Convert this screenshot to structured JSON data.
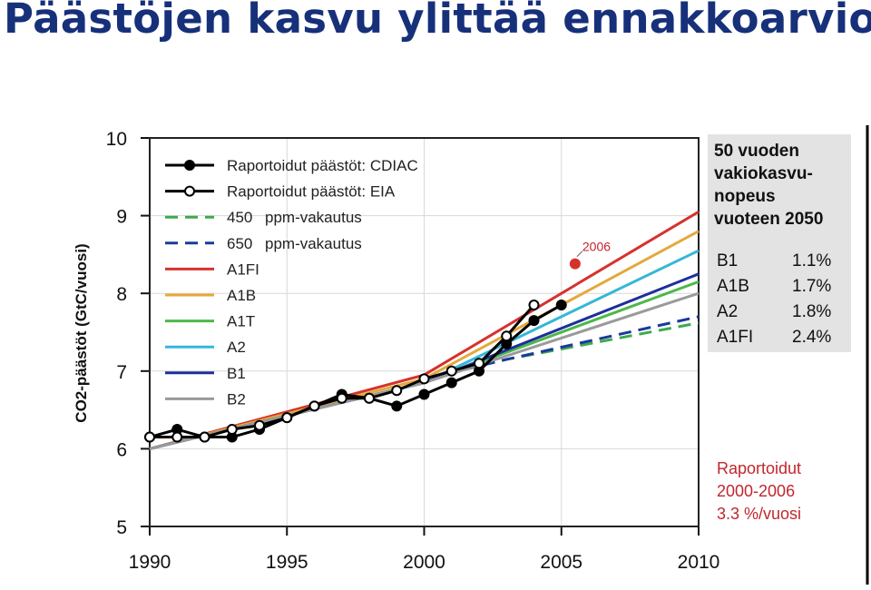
{
  "slide": {
    "title": "Päästöjen kasvu ylittää ennakkoarviot"
  },
  "chart_data": {
    "type": "line",
    "ylabel": "CO2-päästöt (GtC/vuosi)",
    "xlim": [
      1990,
      2010
    ],
    "ylim": [
      5,
      10
    ],
    "x_ticks": [
      1990,
      1995,
      2000,
      2005,
      2010
    ],
    "y_ticks": [
      5,
      6,
      7,
      8,
      9,
      10
    ],
    "legend_position": "top-left",
    "observed": [
      {
        "name": "Raportoidut päästöt: CDIAC",
        "color": "#000000",
        "marker": "filled",
        "points": [
          [
            1990,
            6.15
          ],
          [
            1991,
            6.25
          ],
          [
            1992,
            6.15
          ],
          [
            1993,
            6.15
          ],
          [
            1994,
            6.25
          ],
          [
            1995,
            6.4
          ],
          [
            1996,
            6.55
          ],
          [
            1997,
            6.7
          ],
          [
            1998,
            6.65
          ],
          [
            1999,
            6.55
          ],
          [
            2000,
            6.7
          ],
          [
            2001,
            6.85
          ],
          [
            2002,
            7.0
          ],
          [
            2003,
            7.35
          ],
          [
            2004,
            7.65
          ],
          [
            2005,
            7.85
          ]
        ]
      },
      {
        "name": "Raportoidut päästöt: EIA",
        "color": "#000000",
        "marker": "open",
        "points": [
          [
            1990,
            6.15
          ],
          [
            1991,
            6.15
          ],
          [
            1992,
            6.15
          ],
          [
            1993,
            6.25
          ],
          [
            1994,
            6.3
          ],
          [
            1995,
            6.4
          ],
          [
            1996,
            6.55
          ],
          [
            1997,
            6.65
          ],
          [
            1998,
            6.65
          ],
          [
            1999,
            6.75
          ],
          [
            2000,
            6.9
          ],
          [
            2001,
            7.0
          ],
          [
            2002,
            7.1
          ],
          [
            2003,
            7.45
          ],
          [
            2004,
            7.85
          ]
        ]
      }
    ],
    "scenarios": [
      {
        "name": "450",
        "name_suffix": "ppm-vakautus",
        "color": "#3daa4a",
        "dash": true,
        "points": [
          [
            2000,
            6.9
          ],
          [
            2003,
            7.15
          ],
          [
            2010,
            7.62
          ]
        ]
      },
      {
        "name": "650",
        "name_suffix": "ppm-vakautus",
        "color": "#1b3a9c",
        "dash": true,
        "points": [
          [
            2000,
            6.9
          ],
          [
            2003,
            7.15
          ],
          [
            2010,
            7.7
          ]
        ]
      },
      {
        "name": "A1FI",
        "color": "#d6322c",
        "dash": false,
        "points": [
          [
            1990,
            6.0
          ],
          [
            2000,
            6.95
          ],
          [
            2010,
            9.05
          ]
        ]
      },
      {
        "name": "A1B",
        "color": "#e4a93a",
        "dash": false,
        "points": [
          [
            1990,
            6.0
          ],
          [
            2000,
            6.9
          ],
          [
            2010,
            8.8
          ]
        ]
      },
      {
        "name": "A1T",
        "color": "#4cb849",
        "dash": false,
        "points": [
          [
            1990,
            6.0
          ],
          [
            2000,
            6.85
          ],
          [
            2010,
            8.15
          ]
        ]
      },
      {
        "name": "A2",
        "color": "#35b7d8",
        "dash": false,
        "points": [
          [
            1990,
            6.0
          ],
          [
            2000,
            6.85
          ],
          [
            2010,
            8.55
          ]
        ]
      },
      {
        "name": "B1",
        "color": "#1c2f9a",
        "dash": false,
        "points": [
          [
            1990,
            6.0
          ],
          [
            2000,
            6.85
          ],
          [
            2010,
            8.25
          ]
        ]
      },
      {
        "name": "B2",
        "color": "#9a9a9a",
        "dash": false,
        "points": [
          [
            1990,
            6.0
          ],
          [
            2000,
            6.85
          ],
          [
            2010,
            8.0
          ]
        ]
      }
    ],
    "annotation": {
      "label": "2006",
      "x": 2005.5,
      "y": 8.38,
      "color": "#d6322c"
    }
  },
  "panel": {
    "title_lines": [
      "50 vuoden",
      "vakiokasvu-",
      "nopeus",
      "vuoteen 2050"
    ],
    "rows": [
      {
        "scenario": "B1",
        "rate": "1.1%"
      },
      {
        "scenario": "A1B",
        "rate": "1.7%"
      },
      {
        "scenario": "A2",
        "rate": "1.8%"
      },
      {
        "scenario": "A1FI",
        "rate": "2.4%"
      }
    ],
    "reported_lines": [
      "Raportoidut",
      "2000-2006",
      "3.3 %/vuosi"
    ]
  }
}
